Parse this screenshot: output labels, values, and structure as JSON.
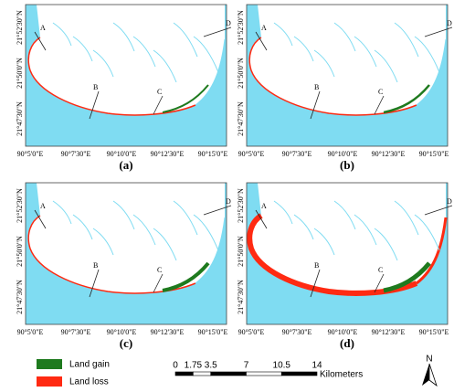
{
  "panels": [
    {
      "label": "(a)"
    },
    {
      "label": "(b)"
    },
    {
      "label": "(c)"
    },
    {
      "label": "(d)"
    }
  ],
  "lon_labels": [
    "90°5'0\"E",
    "90°7'30\"E",
    "90°10'0\"E",
    "90°12'30\"E",
    "90°15'0\"E"
  ],
  "lat_labels": [
    "21°52'30\"N",
    "21°50'0\"N",
    "21°47'30\"N"
  ],
  "transects": [
    "A",
    "B",
    "C",
    "D"
  ],
  "legend": [
    {
      "label": "Land gain",
      "color": "#1e7a1e"
    },
    {
      "label": "Land loss",
      "color": "#ff2a12"
    }
  ],
  "scale_bar": {
    "ticks": [
      0,
      1.75,
      3.5,
      7,
      10.5,
      14
    ],
    "unit": "Kilometers"
  },
  "north": "N"
}
